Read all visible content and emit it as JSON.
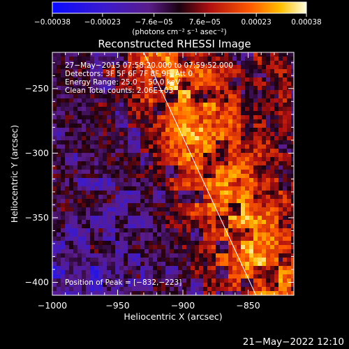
{
  "chart_data": {
    "type": "heatmap",
    "title": "Reconstructed RHESSI Image",
    "xlabel": "Heliocentric X (arcsec)",
    "ylabel": "Heliocentric Y (arcsec)",
    "xlim": [
      -1000,
      -815
    ],
    "ylim": [
      -410,
      -222
    ],
    "x_ticks": [
      {
        "v": -1000,
        "label": "−1000"
      },
      {
        "v": -950,
        "label": "−950"
      },
      {
        "v": -900,
        "label": "−900"
      },
      {
        "v": -850,
        "label": "−850"
      }
    ],
    "y_ticks": [
      {
        "v": -250,
        "label": "−250"
      },
      {
        "v": -300,
        "label": "−300"
      },
      {
        "v": -350,
        "label": "−350"
      },
      {
        "v": -400,
        "label": "−400"
      }
    ],
    "colorbar": {
      "min": -0.00038,
      "max": 0.00038,
      "tick_values": [
        -0.00038,
        -0.00023,
        -7.6e-05,
        7.6e-05,
        0.00023,
        0.00038
      ],
      "tick_labels": [
        "−0.00038",
        "−0.00023",
        "−7.6e−05",
        "7.6e−05",
        "0.00023",
        "0.00038"
      ],
      "unit_label": "(photons cm⁻² s⁻¹ asec⁻²)"
    },
    "annotations": [
      "27−May−2015 07:58:20.000 to 07:59:52.000",
      "Detectors: 3F 5F 6F 7F 8F 9F, Att 0",
      "Energy Range: 25.0 − 50.0 keV",
      "Clean     Total counts: 2.06E+03"
    ],
    "peak_label": "Position of Peak = [−832,−223]",
    "peak_position": [
      -832,
      -223
    ],
    "limb_line": [
      [
        -930,
        -222
      ],
      [
        -844,
        -410
      ]
    ]
  },
  "footer": {
    "timestamp": "21−May−2022 12:10"
  },
  "colors": {
    "background": "#000000",
    "text": "#ffffff"
  }
}
